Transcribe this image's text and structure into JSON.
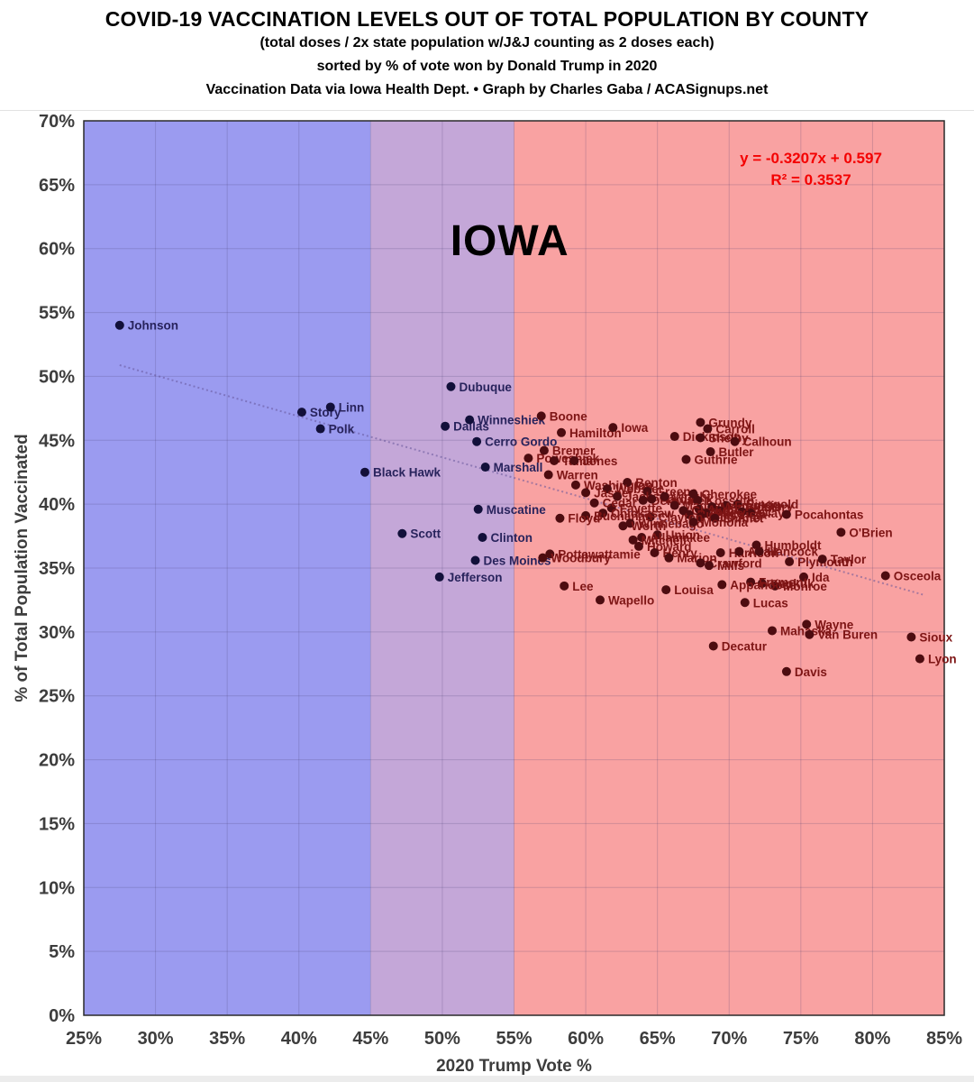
{
  "header": {
    "title": "COVID-19 VACCINATION LEVELS OUT OF TOTAL POPULATION BY COUNTY",
    "subtitle1": "(total doses / 2x state population w/J&J counting as 2 doses each)",
    "subtitle2": "sorted by % of vote won by Donald Trump in 2020",
    "subtitle3": "Vaccination Data via Iowa Health Dept. • Graph by Charles Gaba / ACASignups.net"
  },
  "chart_data": {
    "type": "scatter",
    "state_label": "IOWA",
    "equation_line1": "y = -0.3207x + 0.597",
    "equation_line2": "R² = 0.3537",
    "xlabel": "2020 Trump Vote %",
    "ylabel": "% of Total Population Vaccinated",
    "xlim": [
      25,
      85
    ],
    "ylim": [
      0,
      70
    ],
    "x_tick_step": 5,
    "y_tick_step": 5,
    "grid": true,
    "zones": [
      {
        "name": "blue-zone",
        "from": 25,
        "to": 45,
        "color": "#9b9bf0"
      },
      {
        "name": "purple-zone",
        "from": 45,
        "to": 55,
        "color": "#c4a7d8"
      },
      {
        "name": "red-zone",
        "from": 55,
        "to": 85,
        "color": "#f9a2a2"
      }
    ],
    "colors": {
      "dot_left": "#12103a",
      "label_left": "#28235c",
      "dot_right": "#4d0c10",
      "label_right": "#7e1515",
      "equation": "#f40000",
      "axis_text": "#3d3d3d",
      "gridline": "rgba(70,60,110,0.22)",
      "trendline": "rgba(101,84,153,0.55)",
      "plot_border": "#2a2a2a",
      "zone_color_threshold": 55
    },
    "trendline": {
      "slope": -0.3207,
      "intercept": 0.597,
      "x_start": 27.5,
      "x_end": 83.5
    },
    "points": [
      {
        "name": "Johnson",
        "x": 27.5,
        "y": 54.0
      },
      {
        "name": "Story",
        "x": 40.2,
        "y": 47.2
      },
      {
        "name": "Linn",
        "x": 42.2,
        "y": 47.6
      },
      {
        "name": "Polk",
        "x": 41.5,
        "y": 45.9
      },
      {
        "name": "Black Hawk",
        "x": 44.6,
        "y": 42.5
      },
      {
        "name": "Dubuque",
        "x": 50.6,
        "y": 49.2
      },
      {
        "name": "Dallas",
        "x": 50.2,
        "y": 46.1
      },
      {
        "name": "Winneshiek",
        "x": 51.9,
        "y": 46.6
      },
      {
        "name": "Cerro Gordo",
        "x": 52.4,
        "y": 44.9
      },
      {
        "name": "Marshall",
        "x": 53.0,
        "y": 42.9
      },
      {
        "name": "Muscatine",
        "x": 52.5,
        "y": 39.6
      },
      {
        "name": "Scott",
        "x": 47.2,
        "y": 37.7
      },
      {
        "name": "Clinton",
        "x": 52.8,
        "y": 37.4
      },
      {
        "name": "Des Moines",
        "x": 52.3,
        "y": 35.6
      },
      {
        "name": "Jefferson",
        "x": 49.8,
        "y": 34.3
      },
      {
        "name": "Boone",
        "x": 56.9,
        "y": 46.9
      },
      {
        "name": "Hamilton",
        "x": 58.3,
        "y": 45.6
      },
      {
        "name": "Iowa",
        "x": 61.9,
        "y": 46.0
      },
      {
        "name": "Grundy",
        "x": 68.0,
        "y": 46.4
      },
      {
        "name": "Carroll",
        "x": 68.5,
        "y": 45.9
      },
      {
        "name": "Dickinson",
        "x": 66.2,
        "y": 45.3
      },
      {
        "name": "Shelby",
        "x": 68.0,
        "y": 45.2
      },
      {
        "name": "Calhoun",
        "x": 70.4,
        "y": 44.9
      },
      {
        "name": "Butler",
        "x": 68.7,
        "y": 44.1
      },
      {
        "name": "Guthrie",
        "x": 67.0,
        "y": 43.5
      },
      {
        "name": "Bremer",
        "x": 57.1,
        "y": 44.2
      },
      {
        "name": "Poweshiek",
        "x": 56.0,
        "y": 43.6
      },
      {
        "name": "Tama",
        "x": 57.8,
        "y": 43.4
      },
      {
        "name": "Jones",
        "x": 59.2,
        "y": 43.4
      },
      {
        "name": "Warren",
        "x": 57.4,
        "y": 42.3
      },
      {
        "name": "Washington",
        "x": 59.3,
        "y": 41.5
      },
      {
        "name": "Benton",
        "x": 62.9,
        "y": 41.7
      },
      {
        "name": "Webster",
        "x": 61.5,
        "y": 41.2
      },
      {
        "name": "Greene",
        "x": 64.3,
        "y": 41.0
      },
      {
        "name": "Jasper",
        "x": 60.0,
        "y": 40.9
      },
      {
        "name": "Jackson",
        "x": 62.2,
        "y": 40.6
      },
      {
        "name": "Delaware",
        "x": 64.0,
        "y": 40.3
      },
      {
        "name": "Hardin",
        "x": 64.6,
        "y": 40.4
      },
      {
        "name": "Wright",
        "x": 65.5,
        "y": 40.6
      },
      {
        "name": "Cherokee",
        "x": 67.5,
        "y": 40.8
      },
      {
        "name": "Kossuth",
        "x": 67.8,
        "y": 40.3
      },
      {
        "name": "Ringgold",
        "x": 70.6,
        "y": 40.0
      },
      {
        "name": "Madison",
        "x": 66.2,
        "y": 39.9
      },
      {
        "name": "Franklin",
        "x": 69.8,
        "y": 39.9
      },
      {
        "name": "Montgomery",
        "x": 68.8,
        "y": 39.8
      },
      {
        "name": "Fayette",
        "x": 61.8,
        "y": 39.7
      },
      {
        "name": "Audubon",
        "x": 67.9,
        "y": 39.6
      },
      {
        "name": "Cass",
        "x": 69.3,
        "y": 39.5
      },
      {
        "name": "Clarke",
        "x": 66.8,
        "y": 39.5
      },
      {
        "name": "Sac",
        "x": 70.9,
        "y": 39.4
      },
      {
        "name": "Page",
        "x": 68.4,
        "y": 39.3
      },
      {
        "name": "Clay",
        "x": 71.5,
        "y": 39.3
      },
      {
        "name": "Buena Vista",
        "x": 67.2,
        "y": 39.2
      },
      {
        "name": "Pocahontas",
        "x": 74.0,
        "y": 39.2
      },
      {
        "name": "Palo Alto",
        "x": 68.0,
        "y": 39.0
      },
      {
        "name": "Clayton",
        "x": 64.5,
        "y": 39.0
      },
      {
        "name": "Emmet",
        "x": 69.0,
        "y": 38.9
      },
      {
        "name": "Chickasaw",
        "x": 61.2,
        "y": 39.3
      },
      {
        "name": "Buchanan",
        "x": 60.0,
        "y": 39.1
      },
      {
        "name": "Floyd",
        "x": 58.2,
        "y": 38.9
      },
      {
        "name": "Cedar",
        "x": 60.6,
        "y": 40.1
      },
      {
        "name": "Winnebago",
        "x": 63.1,
        "y": 38.5
      },
      {
        "name": "Monona",
        "x": 67.5,
        "y": 38.6
      },
      {
        "name": "Worth",
        "x": 62.6,
        "y": 38.3
      },
      {
        "name": "Union",
        "x": 65.0,
        "y": 37.6
      },
      {
        "name": "O'Brien",
        "x": 77.8,
        "y": 37.8
      },
      {
        "name": "Allamakee",
        "x": 63.9,
        "y": 37.4
      },
      {
        "name": "Mitchell",
        "x": 63.3,
        "y": 37.2
      },
      {
        "name": "Humboldt",
        "x": 71.9,
        "y": 36.8
      },
      {
        "name": "Howard",
        "x": 63.7,
        "y": 36.7
      },
      {
        "name": "Henry",
        "x": 64.8,
        "y": 36.2
      },
      {
        "name": "Harrison",
        "x": 69.4,
        "y": 36.2
      },
      {
        "name": "Adair",
        "x": 70.7,
        "y": 36.3
      },
      {
        "name": "Hancock",
        "x": 72.1,
        "y": 36.3
      },
      {
        "name": "Pottawattamie",
        "x": 57.5,
        "y": 36.1
      },
      {
        "name": "Woodbury",
        "x": 57.0,
        "y": 35.8
      },
      {
        "name": "Marion",
        "x": 65.8,
        "y": 35.8
      },
      {
        "name": "Crawford",
        "x": 68.0,
        "y": 35.4
      },
      {
        "name": "Mills",
        "x": 68.6,
        "y": 35.2
      },
      {
        "name": "Plymouth",
        "x": 74.2,
        "y": 35.5
      },
      {
        "name": "Taylor",
        "x": 76.5,
        "y": 35.7
      },
      {
        "name": "Ida",
        "x": 75.2,
        "y": 34.3
      },
      {
        "name": "Osceola",
        "x": 80.9,
        "y": 34.4
      },
      {
        "name": "Keokuk",
        "x": 72.3,
        "y": 33.8
      },
      {
        "name": "Monroe",
        "x": 73.2,
        "y": 33.6
      },
      {
        "name": "Fremont",
        "x": 71.5,
        "y": 33.9
      },
      {
        "name": "Appanoose",
        "x": 69.5,
        "y": 33.7
      },
      {
        "name": "Louisa",
        "x": 65.6,
        "y": 33.3
      },
      {
        "name": "Lee",
        "x": 58.5,
        "y": 33.6
      },
      {
        "name": "Wapello",
        "x": 61.0,
        "y": 32.5
      },
      {
        "name": "Lucas",
        "x": 71.1,
        "y": 32.3
      },
      {
        "name": "Wayne",
        "x": 75.4,
        "y": 30.6
      },
      {
        "name": "Mahaska",
        "x": 73.0,
        "y": 30.1
      },
      {
        "name": "Van Buren",
        "x": 75.6,
        "y": 29.8
      },
      {
        "name": "Sioux",
        "x": 82.7,
        "y": 29.6
      },
      {
        "name": "Decatur",
        "x": 68.9,
        "y": 28.9
      },
      {
        "name": "Lyon",
        "x": 83.3,
        "y": 27.9
      },
      {
        "name": "Davis",
        "x": 74.0,
        "y": 26.9
      }
    ]
  }
}
